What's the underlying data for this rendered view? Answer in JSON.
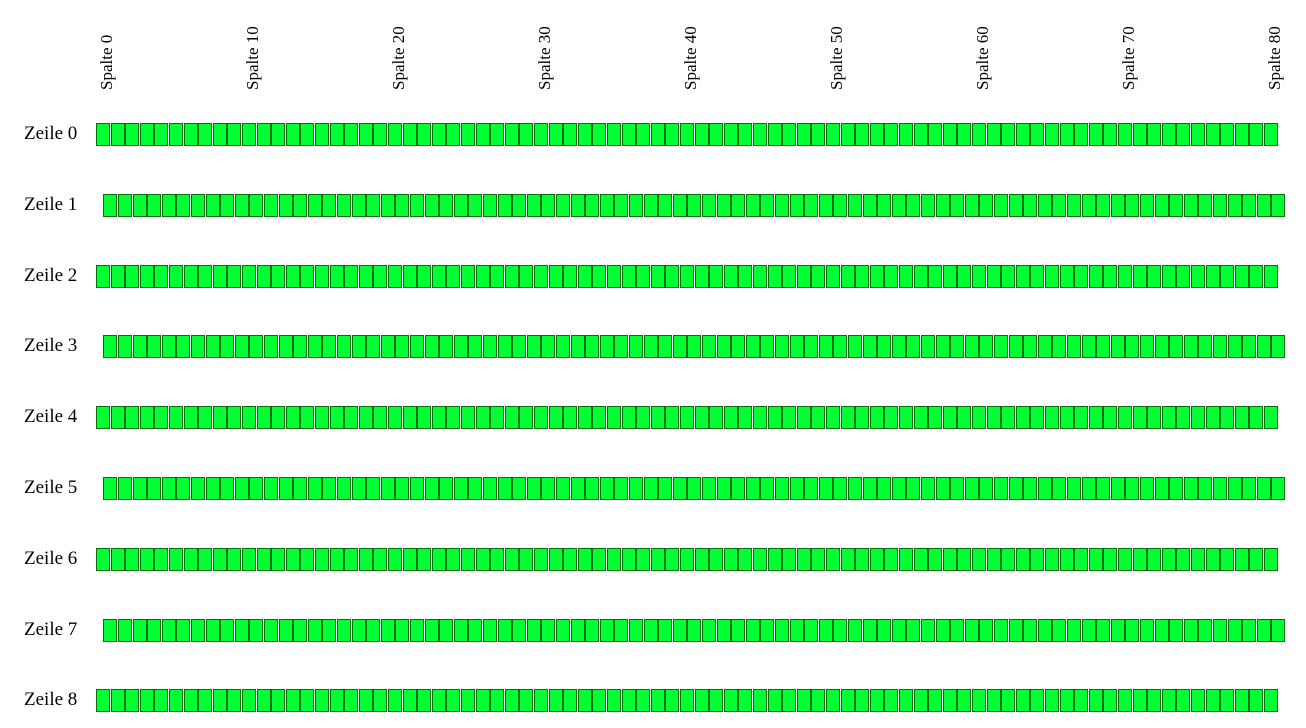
{
  "grid": {
    "column_prefix": "Spalte",
    "row_prefix": "Zeile",
    "columns_per_row": 81,
    "column_labels": [
      "Spalte 0",
      "Spalte 10",
      "Spalte 20",
      "Spalte 30",
      "Spalte 40",
      "Spalte 50",
      "Spalte 60",
      "Spalte 70",
      "Spalte 80"
    ],
    "row_labels": [
      "Zeile 0",
      "Zeile 1",
      "Zeile 2",
      "Zeile 3",
      "Zeile 4",
      "Zeile 5",
      "Zeile 6",
      "Zeile 7",
      "Zeile 8"
    ],
    "cell_color": "#00ff33",
    "cell_border_color": "#0a6e0a"
  }
}
